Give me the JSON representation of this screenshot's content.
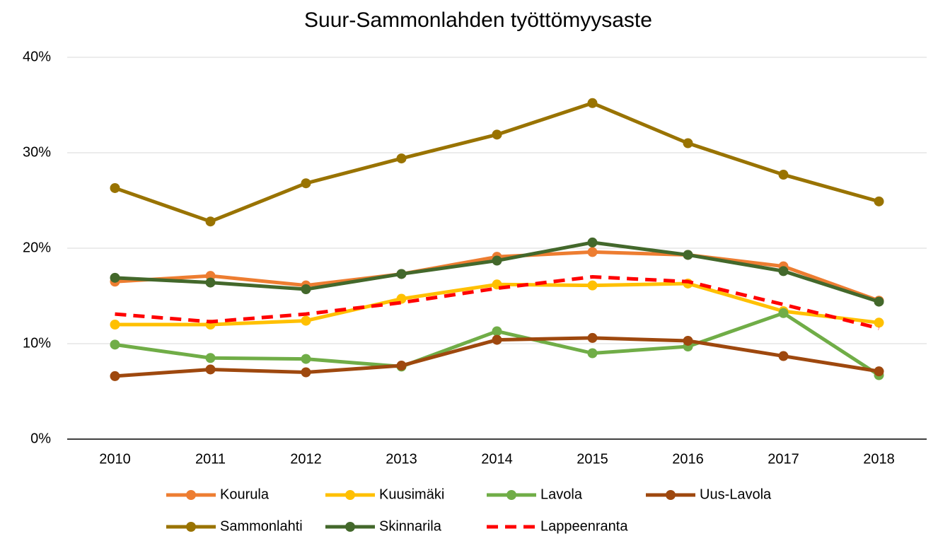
{
  "chart_data": {
    "type": "line",
    "title": "Suur-Sammonlahden työttömyysaste",
    "categories": [
      "2010",
      "2011",
      "2012",
      "2013",
      "2014",
      "2015",
      "2016",
      "2017",
      "2018"
    ],
    "series": [
      {
        "name": "Kourula",
        "color": "#ed7d31",
        "values": [
          16.5,
          17.1,
          16.1,
          17.3,
          19.1,
          19.6,
          19.3,
          18.1,
          14.5
        ]
      },
      {
        "name": "Kuusimäki",
        "color": "#ffc000",
        "values": [
          12.0,
          12.0,
          12.4,
          14.7,
          16.2,
          16.1,
          16.3,
          13.4,
          12.2
        ]
      },
      {
        "name": "Lavola",
        "color": "#70ad47",
        "values": [
          9.9,
          8.5,
          8.4,
          7.6,
          11.3,
          9.0,
          9.7,
          13.2,
          6.7
        ]
      },
      {
        "name": "Uus-Lavola",
        "color": "#9e480e",
        "values": [
          6.6,
          7.3,
          7.0,
          7.7,
          10.4,
          10.6,
          10.3,
          8.7,
          7.1
        ]
      },
      {
        "name": "Sammonlahti",
        "color": "#997300",
        "values": [
          26.3,
          22.8,
          26.8,
          29.4,
          31.9,
          35.2,
          31.0,
          27.7,
          24.9
        ]
      },
      {
        "name": "Skinnarila",
        "color": "#43682b",
        "values": [
          16.9,
          16.4,
          15.7,
          17.3,
          18.7,
          20.6,
          19.3,
          17.6,
          14.4
        ]
      },
      {
        "name": "Lappeenranta",
        "color": "#ff0000",
        "dashed": true,
        "markers": false,
        "values": [
          13.1,
          12.3,
          13.1,
          14.3,
          15.8,
          17.0,
          16.5,
          14.1,
          11.6
        ]
      }
    ],
    "ylim": [
      0,
      40
    ],
    "yticks": [
      {
        "value": 0,
        "label": "0%"
      },
      {
        "value": 10,
        "label": "10%"
      },
      {
        "value": 20,
        "label": "20%"
      },
      {
        "value": 30,
        "label": "30%"
      },
      {
        "value": 40,
        "label": "40%"
      }
    ],
    "grid": true,
    "legend": "bottom"
  }
}
